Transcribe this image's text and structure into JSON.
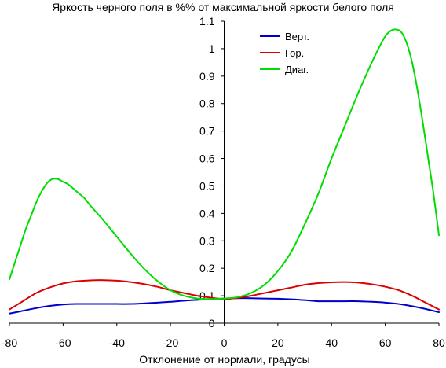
{
  "chart_data": {
    "type": "line",
    "title": "Яркость черного поля в %% от максимальной яркости белого поля",
    "xlabel": "Отклонение от нормали, градусы",
    "ylabel": "",
    "xlim": [
      -80,
      80
    ],
    "ylim": [
      0,
      1.1
    ],
    "x_ticks": [
      "-80",
      "-60",
      "-40",
      "-20",
      "0",
      "20",
      "40",
      "60",
      "80"
    ],
    "y_ticks": [
      "0",
      "0.1",
      "0.2",
      "0.3",
      "0.4",
      "0.5",
      "0.6",
      "0.7",
      "0.8",
      "0.9",
      "1",
      "1.1"
    ],
    "grid": false,
    "legend_position": "top-center",
    "series": [
      {
        "name": "Верт.",
        "color": "#0000cc",
        "x": [
          -80,
          -75,
          -70,
          -65,
          -60,
          -55,
          -50,
          -45,
          -40,
          -35,
          -30,
          -25,
          -20,
          -15,
          -10,
          -5,
          0,
          5,
          10,
          15,
          20,
          25,
          30,
          35,
          40,
          45,
          50,
          55,
          60,
          65,
          70,
          75,
          80
        ],
        "y": [
          0.035,
          0.045,
          0.055,
          0.063,
          0.068,
          0.07,
          0.07,
          0.07,
          0.07,
          0.07,
          0.072,
          0.075,
          0.078,
          0.082,
          0.085,
          0.088,
          0.09,
          0.091,
          0.091,
          0.09,
          0.089,
          0.087,
          0.084,
          0.08,
          0.08,
          0.08,
          0.08,
          0.078,
          0.075,
          0.07,
          0.062,
          0.052,
          0.04
        ]
      },
      {
        "name": "Гор.",
        "color": "#dd0000",
        "x": [
          -80,
          -75,
          -70,
          -65,
          -60,
          -55,
          -50,
          -45,
          -40,
          -35,
          -30,
          -25,
          -20,
          -15,
          -10,
          -5,
          0,
          5,
          10,
          15,
          20,
          25,
          30,
          35,
          40,
          45,
          50,
          55,
          60,
          65,
          70,
          75,
          80
        ],
        "y": [
          0.05,
          0.08,
          0.11,
          0.13,
          0.145,
          0.153,
          0.156,
          0.157,
          0.155,
          0.15,
          0.143,
          0.133,
          0.12,
          0.11,
          0.1,
          0.093,
          0.088,
          0.092,
          0.1,
          0.11,
          0.12,
          0.13,
          0.14,
          0.146,
          0.149,
          0.15,
          0.148,
          0.142,
          0.133,
          0.12,
          0.1,
          0.075,
          0.05
        ]
      },
      {
        "name": "Диаг.",
        "color": "#00dd00",
        "x": [
          -80,
          -78,
          -76,
          -74,
          -72,
          -70,
          -68,
          -66,
          -64,
          -62,
          -60,
          -58,
          -55,
          -52,
          -50,
          -45,
          -40,
          -35,
          -30,
          -25,
          -20,
          -15,
          -10,
          -5,
          0,
          5,
          10,
          15,
          20,
          25,
          30,
          35,
          40,
          45,
          50,
          55,
          58,
          60,
          62,
          64,
          66,
          68,
          70,
          72,
          74,
          76,
          78,
          80
        ],
        "y": [
          0.16,
          0.22,
          0.28,
          0.34,
          0.39,
          0.44,
          0.48,
          0.51,
          0.525,
          0.525,
          0.515,
          0.505,
          0.48,
          0.455,
          0.43,
          0.375,
          0.315,
          0.255,
          0.2,
          0.155,
          0.12,
          0.1,
          0.09,
          0.088,
          0.09,
          0.095,
          0.11,
          0.14,
          0.19,
          0.26,
          0.36,
          0.47,
          0.6,
          0.72,
          0.84,
          0.95,
          1.01,
          1.045,
          1.065,
          1.07,
          1.06,
          1.02,
          0.95,
          0.85,
          0.73,
          0.6,
          0.47,
          0.32
        ]
      }
    ]
  }
}
